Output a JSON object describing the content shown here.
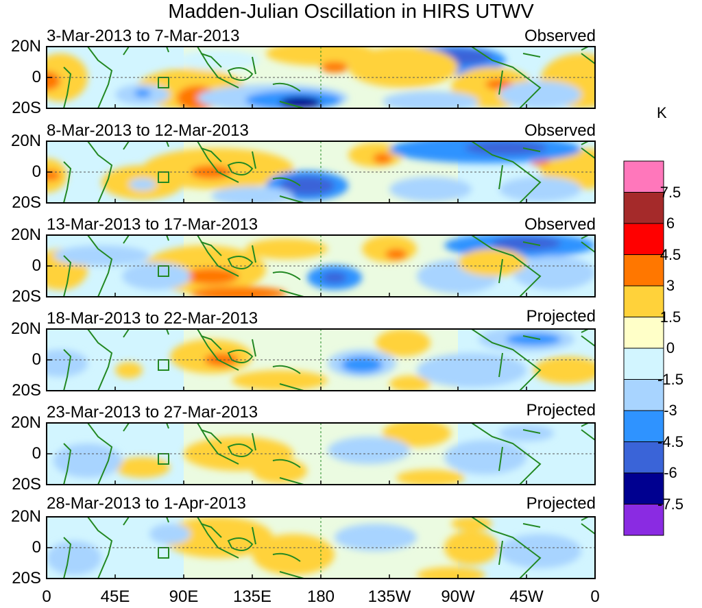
{
  "figure": {
    "title": "Madden-Julian Oscillation in HIRS UTWV",
    "units": "K"
  },
  "panels": [
    {
      "date_range": "3-Mar-2013 to 7-Mar-2013",
      "status": "Observed"
    },
    {
      "date_range": "8-Mar-2013 to 12-Mar-2013",
      "status": "Observed"
    },
    {
      "date_range": "13-Mar-2013 to 17-Mar-2013",
      "status": "Observed"
    },
    {
      "date_range": "18-Mar-2013 to 22-Mar-2013",
      "status": "Projected"
    },
    {
      "date_range": "23-Mar-2013 to 27-Mar-2013",
      "status": "Projected"
    },
    {
      "date_range": "28-Mar-2013 to 1-Apr-2013",
      "status": "Projected"
    }
  ],
  "axes": {
    "lat_ticks": [
      "20N",
      "0",
      "20S"
    ],
    "lon_ticks": [
      "0",
      "45E",
      "90E",
      "135E",
      "180",
      "135W",
      "90W",
      "45W",
      "0"
    ]
  },
  "colorbar": {
    "labels": [
      "7.5",
      "6",
      "4.5",
      "3",
      "1.5",
      "0",
      "-1.5",
      "-3",
      "-4.5",
      "-6",
      "-7.5"
    ],
    "colors": [
      "#ff77bb",
      "#a52a2a",
      "#ff0000",
      "#ff7700",
      "#ffd23a",
      "#ffffc8",
      "#d2f5ff",
      "#a8d4ff",
      "#2f93ff",
      "#3a64d8",
      "#000090",
      "#8a2be2"
    ]
  },
  "colors": {
    "coast": "#228822",
    "gridline": "#228822"
  }
}
